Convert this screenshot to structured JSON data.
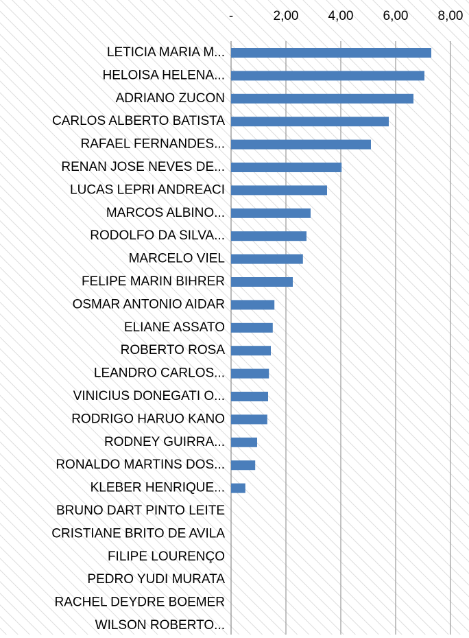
{
  "chart_data": {
    "type": "bar",
    "orientation": "horizontal",
    "categories": [
      "LETICIA MARIA M...",
      "HELOISA HELENA...",
      "ADRIANO ZUCON",
      "CARLOS ALBERTO BATISTA",
      "RAFAEL FERNANDES...",
      "RENAN JOSE NEVES DE...",
      "LUCAS LEPRI ANDREACI",
      "MARCOS ALBINO...",
      "RODOLFO DA SILVA...",
      "MARCELO VIEL",
      "FELIPE MARIN BIHRER",
      "OSMAR ANTONIO AIDAR",
      "ELIANE ASSATO",
      "ROBERTO ROSA",
      "LEANDRO CARLOS...",
      "VINICIUS DONEGATI O...",
      "RODRIGO HARUO KANO",
      "RODNEY GUIRRA...",
      "RONALDO MARTINS DOS...",
      "KLEBER HENRIQUE...",
      "BRUNO DART PINTO LEITE",
      "CRISTIANE BRITO DE AVILA",
      "FILIPE LOURENÇO",
      "PEDRO YUDI MURATA",
      "RACHEL DEYDRE BOEMER",
      "WILSON ROBERTO..."
    ],
    "values": [
      7.3,
      7.05,
      6.65,
      5.75,
      5.1,
      4.03,
      3.5,
      2.9,
      2.75,
      2.62,
      2.25,
      1.58,
      1.52,
      1.45,
      1.38,
      1.35,
      1.32,
      0.95,
      0.88,
      0.52,
      0,
      0,
      0,
      0,
      0,
      0
    ],
    "color": "#4a7ebb",
    "xlim": [
      0,
      8
    ],
    "xticks": [
      {
        "value": 0,
        "label": "-"
      },
      {
        "value": 2,
        "label": "2,00"
      },
      {
        "value": 4,
        "label": "4,00"
      },
      {
        "value": 6,
        "label": "6,00"
      },
      {
        "value": 8,
        "label": "8,00"
      }
    ],
    "grid": true
  }
}
